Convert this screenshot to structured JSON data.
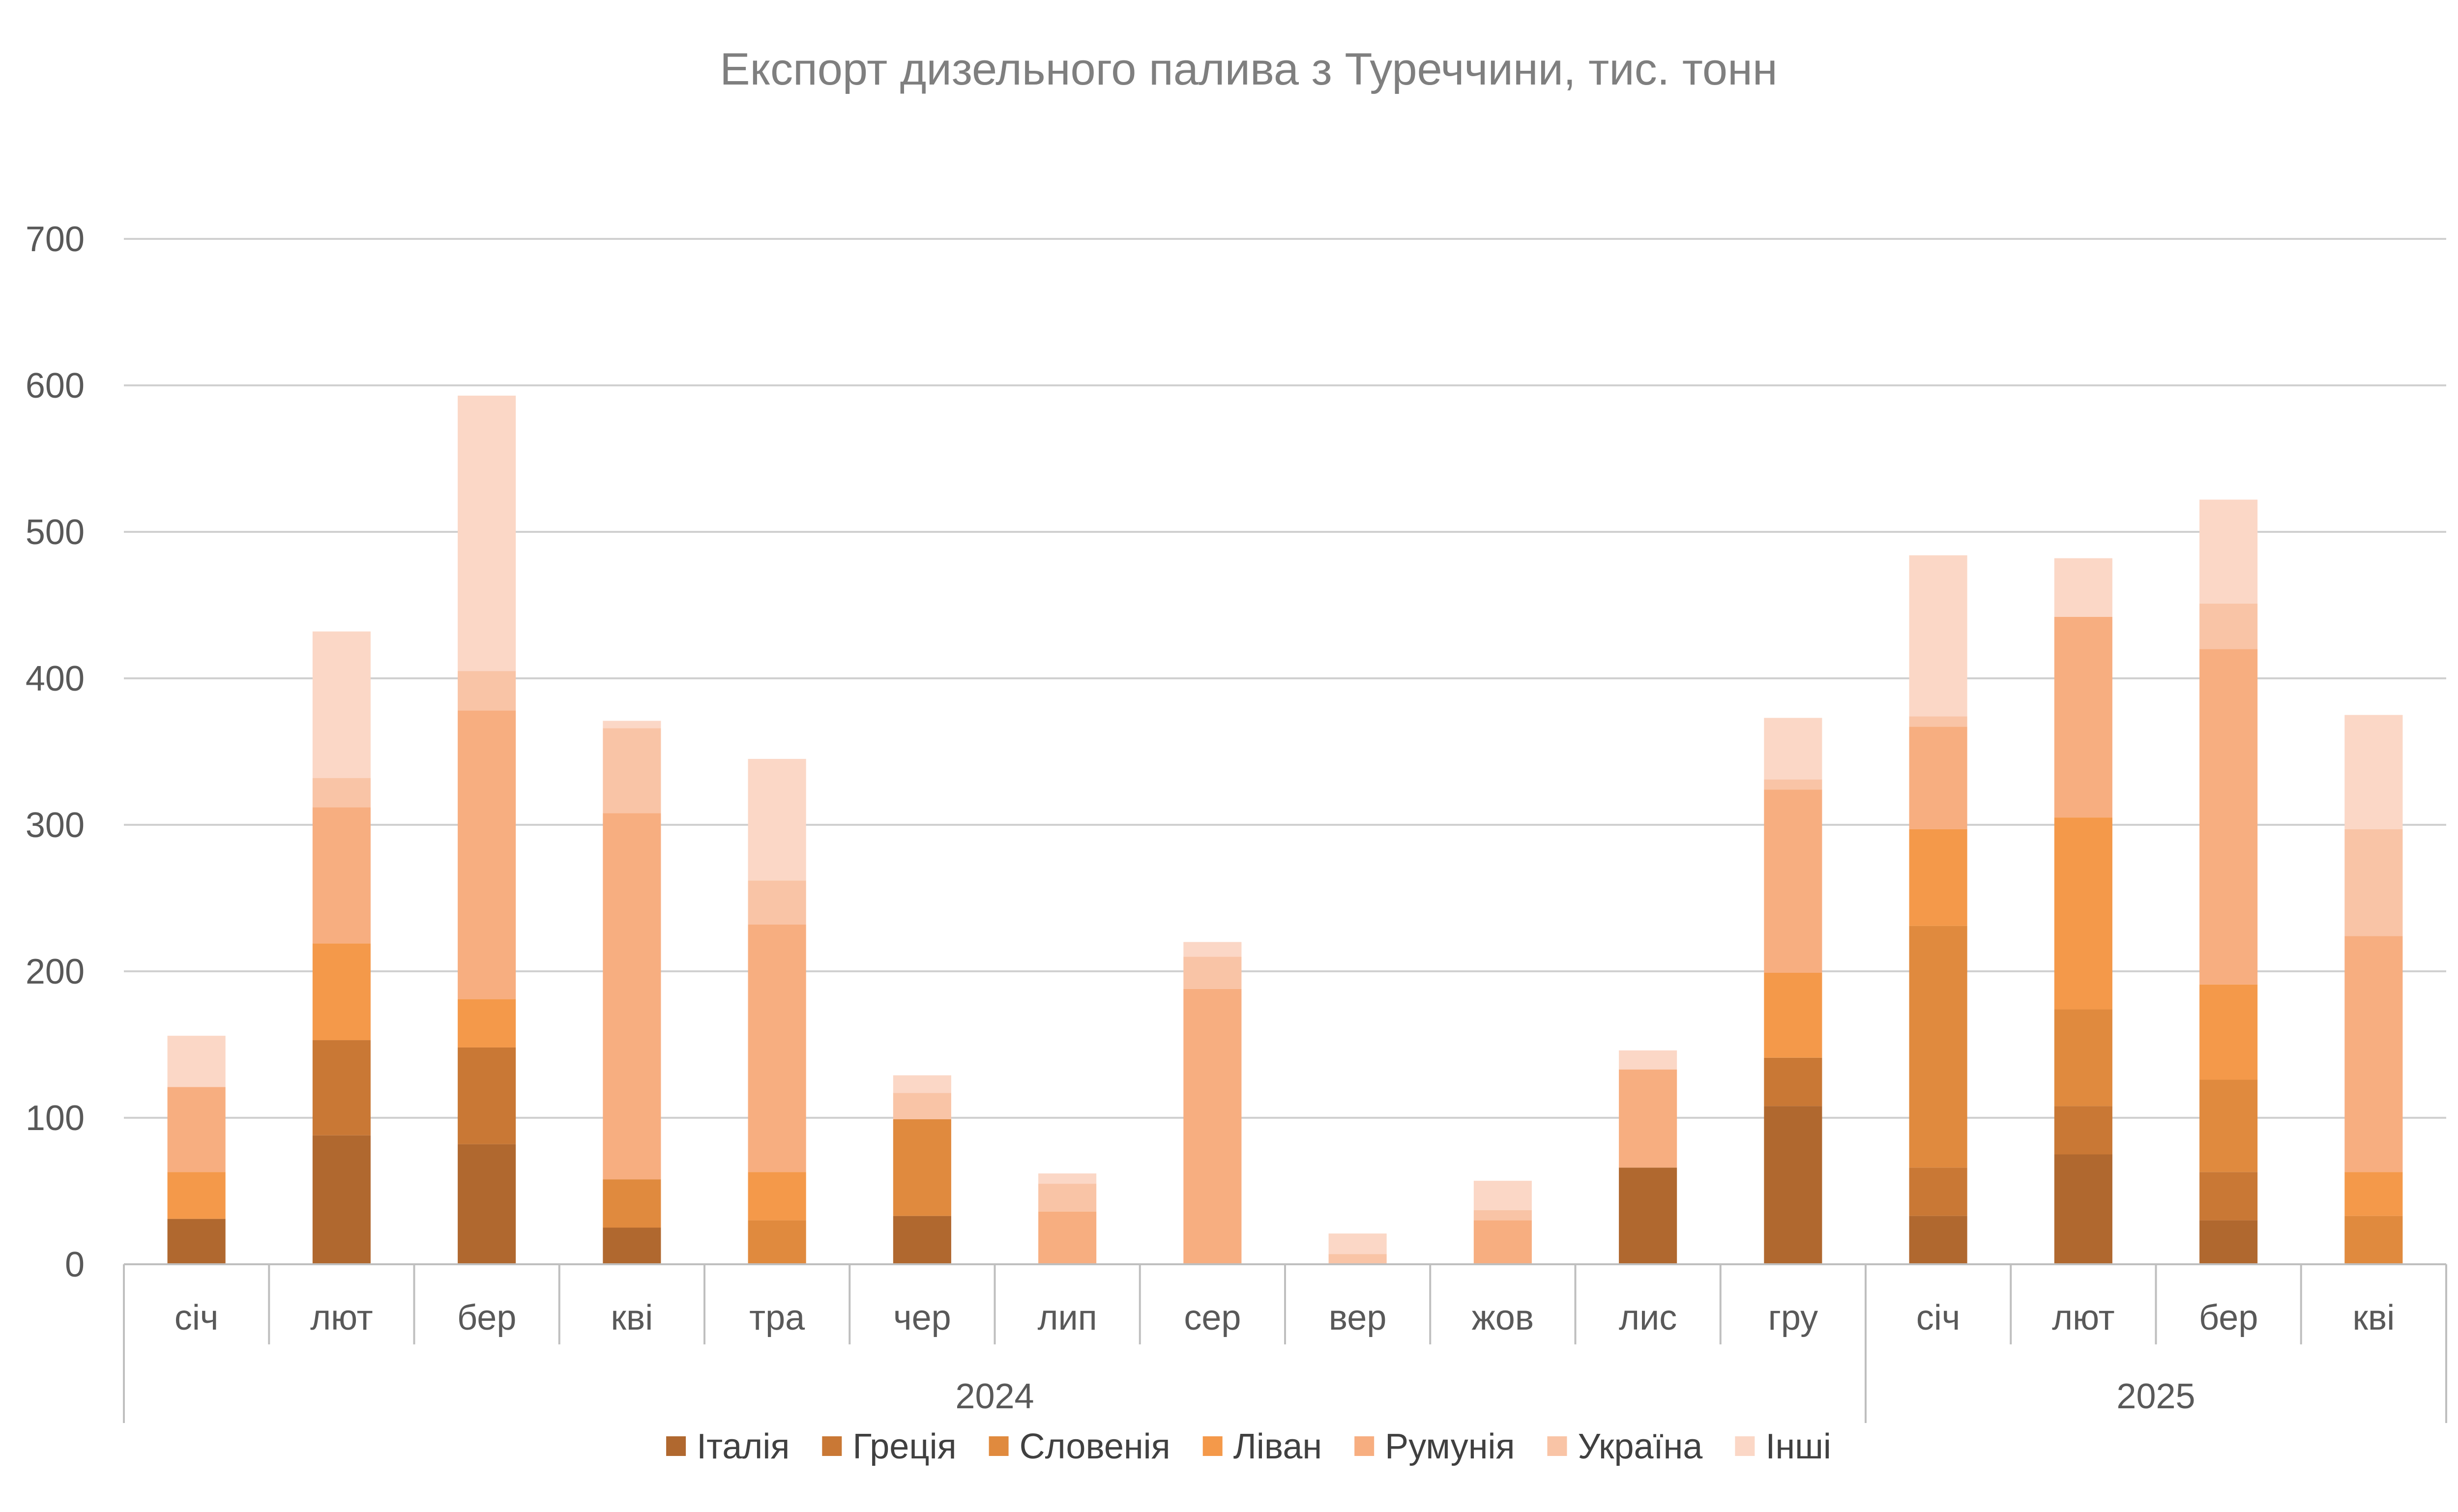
{
  "chart_data": {
    "type": "bar",
    "stacked": true,
    "title": "Експорт дизельного палива з Туреччини, тис. тонн",
    "xlabel": "",
    "ylabel": "",
    "ylim": [
      0,
      700
    ],
    "yticks": [
      0,
      100,
      200,
      300,
      400,
      500,
      600,
      700
    ],
    "grid": true,
    "legend_position": "bottom",
    "categories": [
      "січ",
      "лют",
      "бер",
      "кві",
      "тра",
      "чер",
      "лип",
      "сер",
      "вер",
      "жов",
      "лис",
      "гру",
      "січ",
      "лют",
      "бер",
      "кві"
    ],
    "groups": [
      {
        "label": "2024",
        "span": 12
      },
      {
        "label": "2025",
        "span": 4
      }
    ],
    "series": [
      {
        "name": "Італія",
        "color": "#b0682f",
        "values": [
          31,
          88,
          82,
          25,
          0,
          33,
          0,
          0,
          0,
          0,
          66,
          108,
          33,
          75,
          30,
          0
        ]
      },
      {
        "name": "Греція",
        "color": "#c97835",
        "values": [
          0,
          65,
          66,
          0,
          0,
          0,
          0,
          0,
          0,
          0,
          0,
          33,
          33,
          33,
          33,
          0
        ]
      },
      {
        "name": "Словенія",
        "color": "#e08a3e",
        "values": [
          0,
          0,
          0,
          33,
          30,
          66,
          0,
          0,
          0,
          0,
          0,
          0,
          165,
          66,
          63,
          33
        ]
      },
      {
        "name": "Ліван",
        "color": "#f4994a",
        "values": [
          32,
          66,
          33,
          0,
          33,
          0,
          0,
          0,
          0,
          0,
          0,
          58,
          66,
          131,
          65,
          30
        ]
      },
      {
        "name": "Румунія",
        "color": "#f7ae80",
        "values": [
          58,
          93,
          197,
          250,
          169,
          0,
          36,
          188,
          0,
          30,
          67,
          125,
          70,
          137,
          229,
          161
        ]
      },
      {
        "name": "Україна",
        "color": "#f9c4a6",
        "values": [
          0,
          20,
          27,
          58,
          30,
          18,
          19,
          22,
          7,
          7,
          0,
          7,
          7,
          0,
          31,
          73
        ]
      },
      {
        "name": "Інші",
        "color": "#fbd7c6",
        "values": [
          35,
          100,
          188,
          5,
          83,
          12,
          7,
          10,
          14,
          20,
          13,
          42,
          110,
          40,
          71,
          78
        ]
      }
    ]
  }
}
